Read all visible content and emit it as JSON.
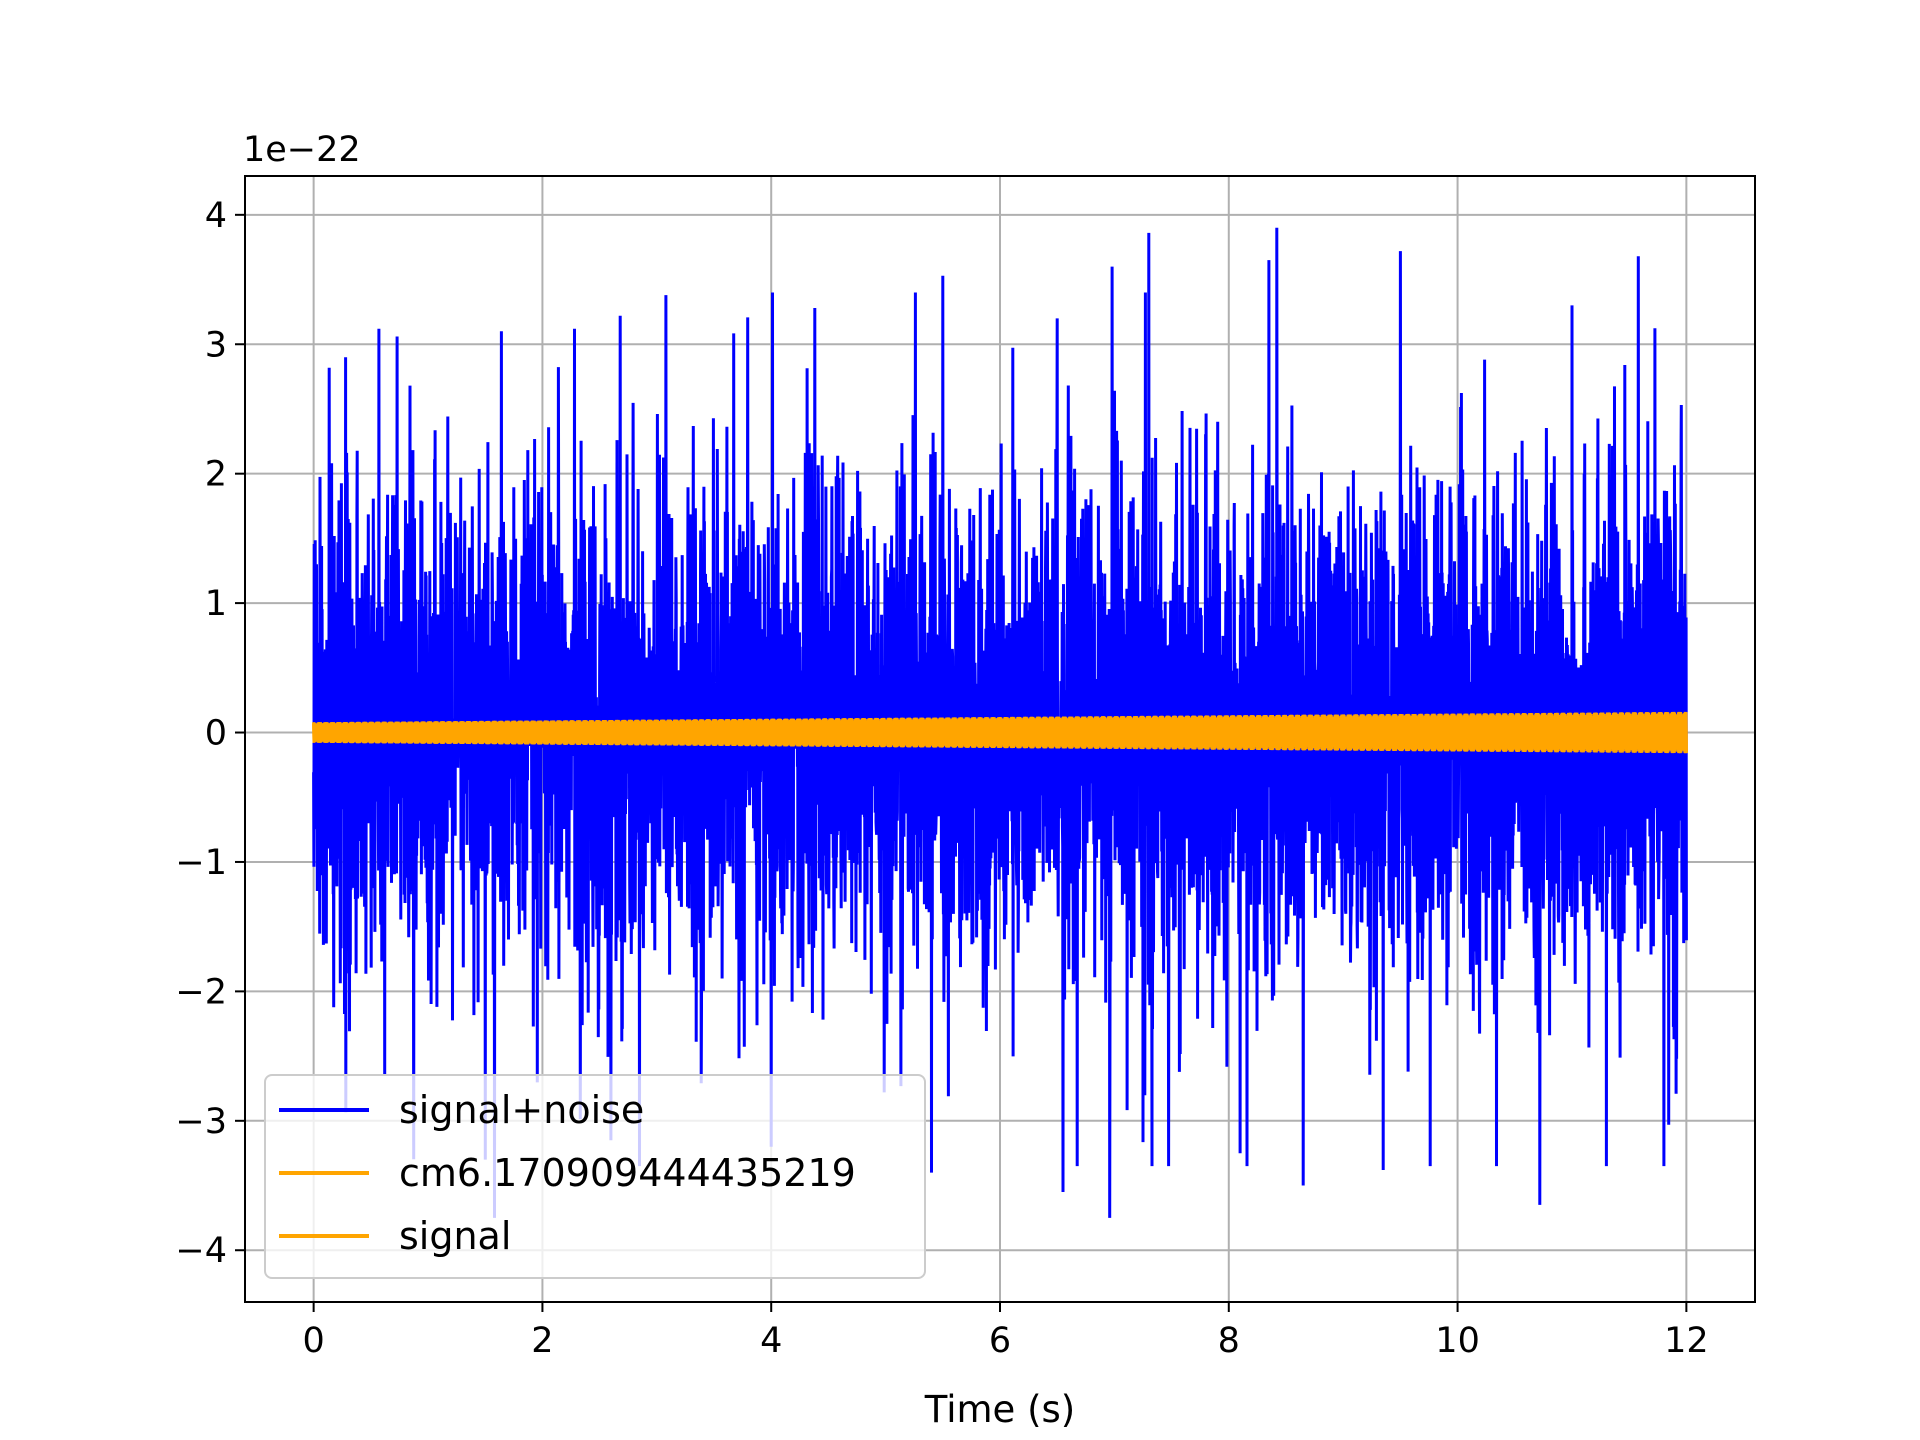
{
  "chart_data": {
    "type": "line",
    "title": "",
    "xlabel": "Time (s)",
    "ylabel": "",
    "y_offset_text": "1e−22",
    "xlim": [
      -0.6,
      12.6
    ],
    "ylim": [
      -4.4,
      4.3
    ],
    "y_scale_exponent": -22,
    "x_ticks": [
      0,
      2,
      4,
      6,
      8,
      10,
      12
    ],
    "x_tick_labels": [
      "0",
      "2",
      "4",
      "6",
      "8",
      "10",
      "12"
    ],
    "y_ticks": [
      -4,
      -3,
      -2,
      -1,
      0,
      1,
      2,
      3,
      4
    ],
    "y_tick_labels": [
      "−4",
      "−3",
      "−2",
      "−1",
      "0",
      "1",
      "2",
      "3",
      "4"
    ],
    "grid": true,
    "legend_position": "lower-left",
    "x_range": [
      0,
      12
    ],
    "series": [
      {
        "name": "signal+noise",
        "color": "#0000ff",
        "description_kind": "noise",
        "rms": 0.9,
        "max": 3.9,
        "min": -3.75
      },
      {
        "name": "cm6.170909444435219",
        "color": "#ffa500",
        "description_kind": "chirp",
        "amplitude_start": 0.08,
        "amplitude_end": 0.16
      },
      {
        "name": "signal",
        "color": "#ffa500",
        "description_kind": "chirp",
        "amplitude_start": 0.08,
        "amplitude_end": 0.16
      }
    ],
    "noise_extremes": [
      {
        "x": 0.28,
        "y": 2.9
      },
      {
        "x": 0.57,
        "y": 3.12
      },
      {
        "x": 0.73,
        "y": 3.06
      },
      {
        "x": 1.58,
        "y": 3.28
      },
      {
        "x": 1.64,
        "y": 3.1
      },
      {
        "x": 2.28,
        "y": 3.12
      },
      {
        "x": 2.68,
        "y": 3.22
      },
      {
        "x": 3.08,
        "y": 3.38
      },
      {
        "x": 4.38,
        "y": 3.28
      },
      {
        "x": 5.5,
        "y": 3.53
      },
      {
        "x": 6.5,
        "y": 3.2
      },
      {
        "x": 6.98,
        "y": 3.6
      },
      {
        "x": 7.3,
        "y": 3.86
      },
      {
        "x": 8.35,
        "y": 3.65
      },
      {
        "x": 8.42,
        "y": 3.9
      },
      {
        "x": 9.5,
        "y": 3.72
      },
      {
        "x": 11.0,
        "y": 3.3
      },
      {
        "x": 11.58,
        "y": 3.68
      },
      {
        "x": 0.62,
        "y": -2.65
      },
      {
        "x": 1.5,
        "y": -3.3
      },
      {
        "x": 1.58,
        "y": -3.75
      },
      {
        "x": 2.6,
        "y": -3.15
      },
      {
        "x": 4.0,
        "y": -3.2
      },
      {
        "x": 5.4,
        "y": -3.4
      },
      {
        "x": 6.55,
        "y": -3.55
      },
      {
        "x": 6.96,
        "y": -3.75
      },
      {
        "x": 8.1,
        "y": -3.25
      },
      {
        "x": 8.65,
        "y": -3.5
      },
      {
        "x": 9.35,
        "y": -3.38
      },
      {
        "x": 10.72,
        "y": -3.65
      },
      {
        "x": 11.3,
        "y": -3.35
      }
    ]
  }
}
